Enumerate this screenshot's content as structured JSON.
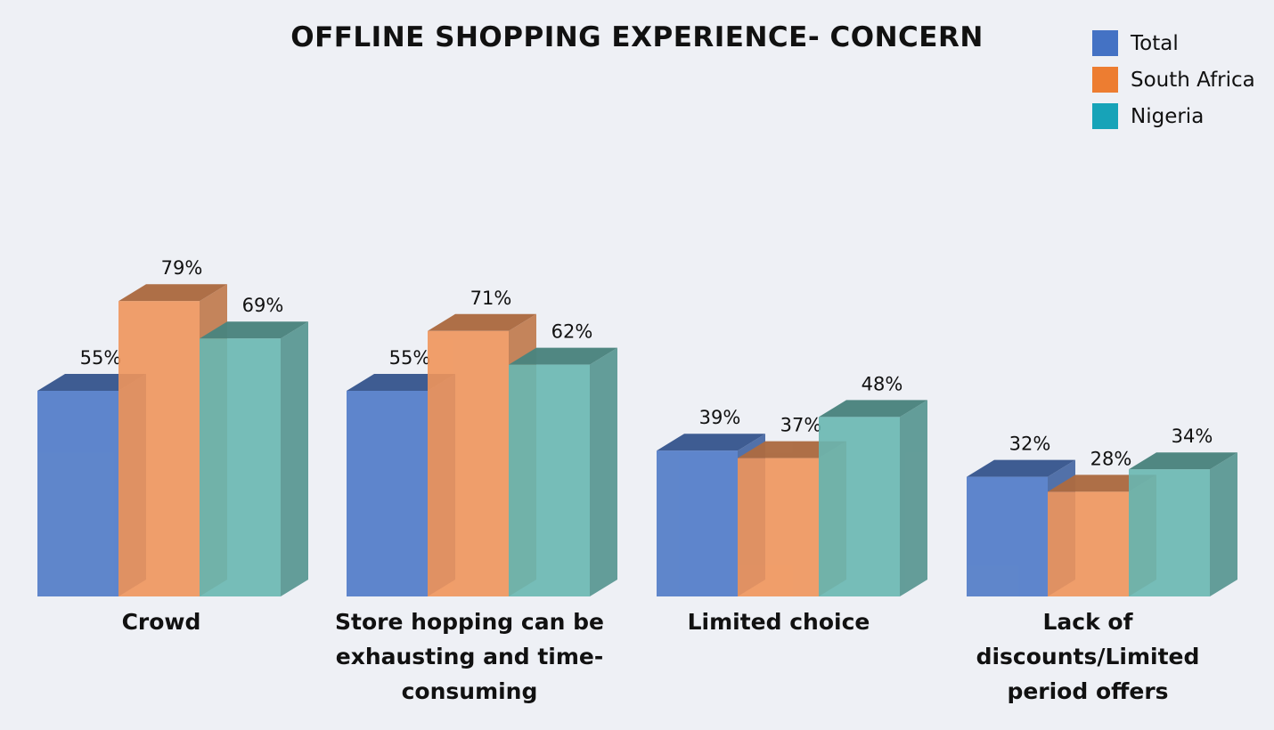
{
  "chart_data": {
    "type": "bar",
    "title": "OFFLINE SHOPPING EXPERIENCE- CONCERN",
    "categories": [
      "Crowd",
      "Store hopping can be exhausting and time-consuming",
      "Limited choice",
      "Lack of discounts/Limited period offers"
    ],
    "series": [
      {
        "name": "Total",
        "values": [
          55,
          55,
          39,
          32
        ],
        "labels": [
          "55%",
          "55%",
          "39%",
          "32%"
        ],
        "color": "#4f7ac7"
      },
      {
        "name": "South Africa",
        "values": [
          79,
          71,
          37,
          28
        ],
        "labels": [
          "79%",
          "71%",
          "37%",
          "28%"
        ],
        "color": "#ed7d31"
      },
      {
        "name": "Nigeria",
        "values": [
          69,
          62,
          48,
          34
        ],
        "labels": [
          "69%",
          "62%",
          "48%",
          "34%"
        ],
        "color": "#17a3b8"
      }
    ],
    "ylim": [
      0,
      100
    ],
    "xlabel": "",
    "ylabel": "",
    "grid": false,
    "legend": "top-right",
    "style": "3d-clustered-column"
  }
}
